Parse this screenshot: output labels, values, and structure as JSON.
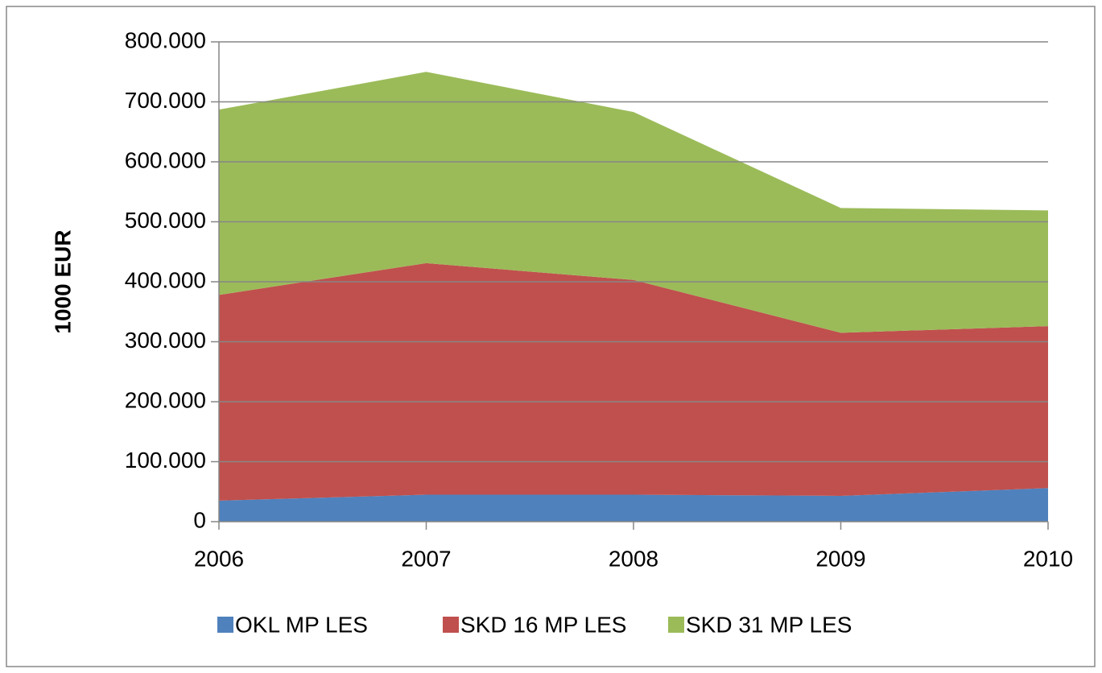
{
  "chart_data": {
    "type": "stacked_area",
    "y_label": "1000 EUR",
    "categories": [
      "2006",
      "2007",
      "2008",
      "2009",
      "2010"
    ],
    "series": [
      {
        "name": "OKL MP LES",
        "color": "#4f81bd",
        "values": [
          35000,
          45000,
          45000,
          43000,
          56000
        ]
      },
      {
        "name": "SKD 16 MP LES",
        "color": "#c0504d",
        "values": [
          343000,
          386000,
          358000,
          272000,
          270000
        ]
      },
      {
        "name": "SKD 31 MP LES",
        "color": "#9bbb59",
        "values": [
          309000,
          319000,
          280000,
          208000,
          193000
        ]
      }
    ],
    "ylim": [
      0,
      800000
    ],
    "yticks": [
      0,
      {
        "value": 100000,
        "label": "100.000"
      },
      {
        "value": 200000,
        "label": "200.000"
      },
      {
        "value": 300000,
        "label": "300.000"
      },
      {
        "value": 400000,
        "label": "400.000"
      },
      {
        "value": 500000,
        "label": "500.000"
      },
      {
        "value": 600000,
        "label": "600.000"
      },
      {
        "value": 700000,
        "label": "700.000"
      },
      {
        "value": 800000,
        "label": "800.000"
      }
    ],
    "grid": true,
    "legend": "bottom"
  }
}
